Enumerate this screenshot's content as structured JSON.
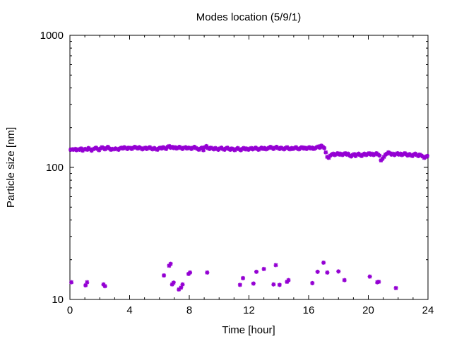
{
  "chart_data": {
    "type": "scatter",
    "title": "Modes location (5/9/1)",
    "xlabel": "Time [hour]",
    "ylabel": "Particle size [nm]",
    "xlim": [
      0,
      24
    ],
    "ylim": [
      10,
      1000
    ],
    "yscale": "log",
    "x_ticks": [
      0,
      4,
      8,
      12,
      16,
      20,
      24
    ],
    "y_ticks": [
      10,
      100,
      1000
    ],
    "grid": false,
    "legend": "none",
    "marker_color": "#9400d3",
    "marker": "star",
    "series": [
      {
        "points": [
          [
            0.05,
            136
          ],
          [
            0.15,
            137
          ],
          [
            0.25,
            136
          ],
          [
            0.35,
            138
          ],
          [
            0.45,
            135
          ],
          [
            0.55,
            137
          ],
          [
            0.65,
            136
          ],
          [
            0.75,
            139
          ],
          [
            0.85,
            134
          ],
          [
            0.95,
            137
          ],
          [
            1.05,
            138
          ],
          [
            1.15,
            136
          ],
          [
            1.25,
            140
          ],
          [
            1.35,
            137
          ],
          [
            1.45,
            134
          ],
          [
            1.55,
            137
          ],
          [
            1.65,
            139
          ],
          [
            1.75,
            141
          ],
          [
            1.85,
            138
          ],
          [
            1.95,
            135
          ],
          [
            2.05,
            139
          ],
          [
            2.15,
            142
          ],
          [
            2.25,
            140
          ],
          [
            2.35,
            137
          ],
          [
            2.45,
            140
          ],
          [
            2.55,
            143
          ],
          [
            2.65,
            139
          ],
          [
            2.75,
            136
          ],
          [
            2.85,
            138
          ],
          [
            2.95,
            137
          ],
          [
            3.05,
            139
          ],
          [
            3.15,
            138
          ],
          [
            3.25,
            136
          ],
          [
            3.35,
            139
          ],
          [
            3.45,
            141
          ],
          [
            3.55,
            139
          ],
          [
            3.65,
            142
          ],
          [
            3.75,
            140
          ],
          [
            3.85,
            138
          ],
          [
            3.95,
            141
          ],
          [
            4.05,
            140
          ],
          [
            4.15,
            138
          ],
          [
            4.25,
            141
          ],
          [
            4.35,
            143
          ],
          [
            4.45,
            141
          ],
          [
            4.55,
            139
          ],
          [
            4.65,
            142
          ],
          [
            4.75,
            140
          ],
          [
            4.85,
            137
          ],
          [
            4.95,
            139
          ],
          [
            5.05,
            141
          ],
          [
            5.15,
            138
          ],
          [
            5.25,
            140
          ],
          [
            5.35,
            142
          ],
          [
            5.45,
            139
          ],
          [
            5.55,
            137
          ],
          [
            5.65,
            140
          ],
          [
            5.75,
            138
          ],
          [
            5.85,
            136
          ],
          [
            5.95,
            139
          ],
          [
            6.05,
            141
          ],
          [
            6.15,
            139
          ],
          [
            6.25,
            142
          ],
          [
            6.35,
            140
          ],
          [
            6.45,
            138
          ],
          [
            6.55,
            143
          ],
          [
            6.65,
            145
          ],
          [
            6.75,
            141
          ],
          [
            6.85,
            143
          ],
          [
            6.95,
            140
          ],
          [
            7.05,
            142
          ],
          [
            7.15,
            139
          ],
          [
            7.25,
            141
          ],
          [
            7.35,
            143
          ],
          [
            7.45,
            140
          ],
          [
            7.55,
            138
          ],
          [
            7.65,
            141
          ],
          [
            7.75,
            142
          ],
          [
            7.85,
            139
          ],
          [
            7.95,
            141
          ],
          [
            8.05,
            140
          ],
          [
            8.15,
            138
          ],
          [
            8.25,
            141
          ],
          [
            8.35,
            143
          ],
          [
            8.45,
            140
          ],
          [
            8.55,
            138
          ],
          [
            8.65,
            136
          ],
          [
            8.75,
            139
          ],
          [
            8.85,
            141
          ],
          [
            8.95,
            135
          ],
          [
            9.05,
            142
          ],
          [
            9.15,
            145
          ],
          [
            9.25,
            140
          ],
          [
            9.35,
            138
          ],
          [
            9.45,
            141
          ],
          [
            9.55,
            139
          ],
          [
            9.65,
            137
          ],
          [
            9.75,
            140
          ],
          [
            9.85,
            138
          ],
          [
            9.95,
            136
          ],
          [
            10.05,
            139
          ],
          [
            10.15,
            141
          ],
          [
            10.25,
            138
          ],
          [
            10.35,
            136
          ],
          [
            10.45,
            139
          ],
          [
            10.55,
            141
          ],
          [
            10.65,
            138
          ],
          [
            10.75,
            136
          ],
          [
            10.85,
            139
          ],
          [
            10.95,
            137
          ],
          [
            11.05,
            135
          ],
          [
            11.15,
            138
          ],
          [
            11.25,
            140
          ],
          [
            11.35,
            137
          ],
          [
            11.45,
            135
          ],
          [
            11.55,
            138
          ],
          [
            11.65,
            140
          ],
          [
            11.75,
            137
          ],
          [
            11.85,
            139
          ],
          [
            11.95,
            136
          ],
          [
            12.05,
            138
          ],
          [
            12.15,
            140
          ],
          [
            12.25,
            137
          ],
          [
            12.35,
            139
          ],
          [
            12.45,
            141
          ],
          [
            12.55,
            138
          ],
          [
            12.65,
            136
          ],
          [
            12.75,
            139
          ],
          [
            12.85,
            141
          ],
          [
            12.95,
            138
          ],
          [
            13.05,
            140
          ],
          [
            13.15,
            137
          ],
          [
            13.25,
            139
          ],
          [
            13.35,
            141
          ],
          [
            13.45,
            143
          ],
          [
            13.55,
            140
          ],
          [
            13.65,
            138
          ],
          [
            13.75,
            141
          ],
          [
            13.85,
            143
          ],
          [
            13.95,
            140
          ],
          [
            14.05,
            138
          ],
          [
            14.15,
            141
          ],
          [
            14.25,
            139
          ],
          [
            14.35,
            137
          ],
          [
            14.45,
            140
          ],
          [
            14.55,
            142
          ],
          [
            14.65,
            139
          ],
          [
            14.75,
            137
          ],
          [
            14.85,
            140
          ],
          [
            14.95,
            138
          ],
          [
            15.05,
            140
          ],
          [
            15.15,
            142
          ],
          [
            15.25,
            139
          ],
          [
            15.35,
            137
          ],
          [
            15.45,
            140
          ],
          [
            15.55,
            142
          ],
          [
            15.65,
            139
          ],
          [
            15.75,
            141
          ],
          [
            15.85,
            138
          ],
          [
            15.95,
            140
          ],
          [
            16.05,
            142
          ],
          [
            16.15,
            139
          ],
          [
            16.25,
            141
          ],
          [
            16.35,
            138
          ],
          [
            16.45,
            140
          ],
          [
            16.55,
            142
          ],
          [
            16.65,
            144
          ],
          [
            16.75,
            141
          ],
          [
            16.85,
            146
          ],
          [
            16.95,
            143
          ],
          [
            17.05,
            140
          ],
          [
            17.15,
            130
          ],
          [
            17.25,
            120
          ],
          [
            17.35,
            118
          ],
          [
            17.45,
            123
          ],
          [
            17.55,
            125
          ],
          [
            17.65,
            127
          ],
          [
            17.75,
            124
          ],
          [
            17.85,
            126
          ],
          [
            17.95,
            128
          ],
          [
            18.05,
            125
          ],
          [
            18.15,
            127
          ],
          [
            18.25,
            124
          ],
          [
            18.35,
            126
          ],
          [
            18.45,
            128
          ],
          [
            18.55,
            125
          ],
          [
            18.65,
            127
          ],
          [
            18.75,
            123
          ],
          [
            18.85,
            121
          ],
          [
            18.95,
            124
          ],
          [
            19.05,
            126
          ],
          [
            19.15,
            122
          ],
          [
            19.25,
            125
          ],
          [
            19.35,
            127
          ],
          [
            19.45,
            124
          ],
          [
            19.55,
            122
          ],
          [
            19.65,
            125
          ],
          [
            19.75,
            127
          ],
          [
            19.85,
            124
          ],
          [
            19.95,
            126
          ],
          [
            20.05,
            128
          ],
          [
            20.15,
            125
          ],
          [
            20.25,
            127
          ],
          [
            20.35,
            124
          ],
          [
            20.45,
            126
          ],
          [
            20.55,
            128
          ],
          [
            20.65,
            125
          ],
          [
            20.75,
            123
          ],
          [
            20.85,
            113
          ],
          [
            20.95,
            116
          ],
          [
            21.05,
            120
          ],
          [
            21.15,
            125
          ],
          [
            21.25,
            127
          ],
          [
            21.35,
            130
          ],
          [
            21.45,
            128
          ],
          [
            21.55,
            125
          ],
          [
            21.65,
            127
          ],
          [
            21.75,
            124
          ],
          [
            21.85,
            126
          ],
          [
            21.95,
            128
          ],
          [
            22.05,
            125
          ],
          [
            22.15,
            127
          ],
          [
            22.25,
            124
          ],
          [
            22.35,
            126
          ],
          [
            22.45,
            128
          ],
          [
            22.55,
            125
          ],
          [
            22.65,
            123
          ],
          [
            22.75,
            126
          ],
          [
            22.85,
            124
          ],
          [
            22.95,
            122
          ],
          [
            23.05,
            125
          ],
          [
            23.15,
            127
          ],
          [
            23.25,
            124
          ],
          [
            23.35,
            122
          ],
          [
            23.45,
            125
          ],
          [
            23.55,
            123
          ],
          [
            23.65,
            121
          ],
          [
            23.75,
            118
          ],
          [
            23.85,
            120
          ],
          [
            23.95,
            122
          ],
          [
            0.1,
            13.5
          ],
          [
            1.05,
            12.8
          ],
          [
            1.15,
            13.5
          ],
          [
            2.25,
            13.0
          ],
          [
            2.35,
            12.6
          ],
          [
            6.3,
            15.2
          ],
          [
            6.65,
            18.0
          ],
          [
            6.75,
            18.6
          ],
          [
            6.85,
            13.0
          ],
          [
            6.95,
            13.4
          ],
          [
            7.3,
            11.9
          ],
          [
            7.45,
            12.3
          ],
          [
            7.55,
            13.0
          ],
          [
            7.95,
            15.6
          ],
          [
            8.05,
            16.0
          ],
          [
            9.2,
            16.0
          ],
          [
            11.4,
            12.9
          ],
          [
            11.6,
            14.5
          ],
          [
            12.3,
            13.2
          ],
          [
            12.5,
            16.2
          ],
          [
            13.0,
            17.0
          ],
          [
            13.65,
            13.0
          ],
          [
            13.8,
            18.2
          ],
          [
            14.05,
            12.9
          ],
          [
            14.55,
            13.6
          ],
          [
            14.65,
            14.0
          ],
          [
            16.25,
            13.3
          ],
          [
            16.6,
            16.2
          ],
          [
            17.0,
            19.0
          ],
          [
            17.25,
            16.0
          ],
          [
            18.0,
            16.3
          ],
          [
            18.4,
            14.0
          ],
          [
            20.1,
            14.9
          ],
          [
            20.6,
            13.5
          ],
          [
            20.7,
            13.6
          ],
          [
            21.85,
            12.2
          ]
        ]
      }
    ]
  }
}
